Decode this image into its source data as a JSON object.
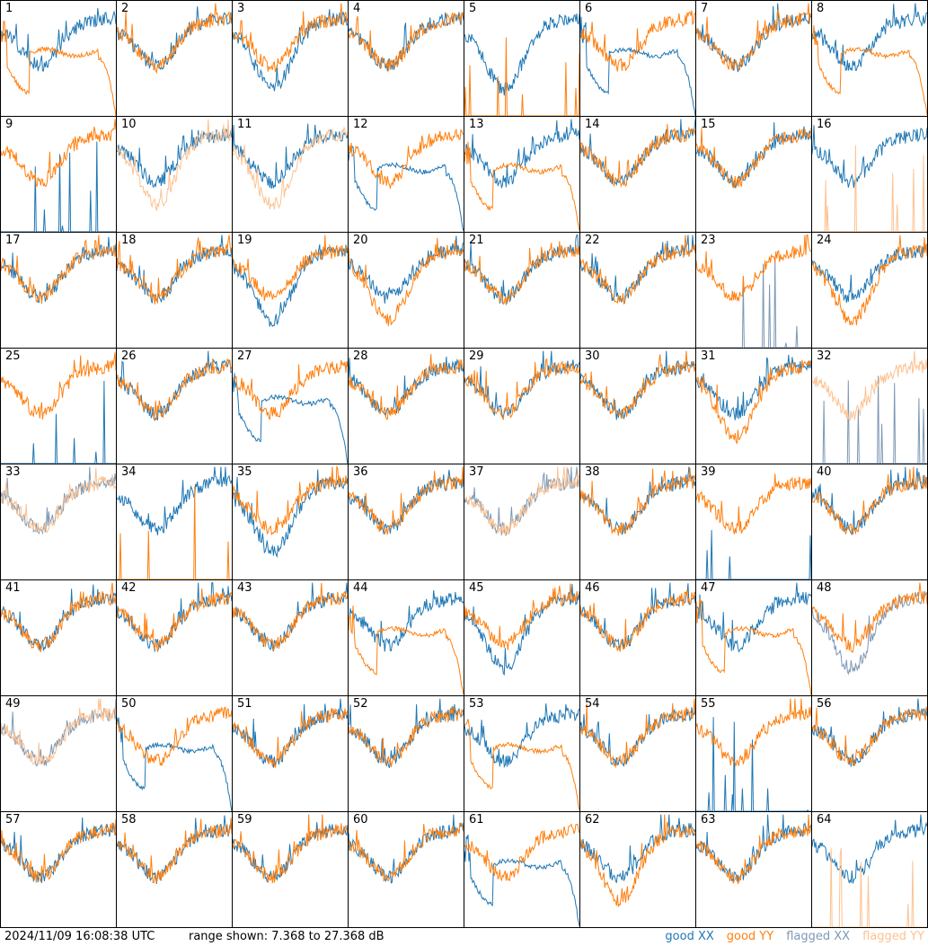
{
  "chart_data": {
    "type": "line",
    "title": "",
    "timestamp": "2024/11/09 16:08:38 UTC",
    "range_text": "range shown: 7.368 to 27.368 dB",
    "ylim": [
      7.368,
      27.368
    ],
    "units": "dB",
    "legend": [
      {
        "label": "good XX",
        "color": "#1f77b4"
      },
      {
        "label": "good YY",
        "color": "#ff7f0e"
      },
      {
        "label": "flagged XX",
        "color": "#7d98b5"
      },
      {
        "label": "flagged YY",
        "color": "#fdc291"
      }
    ],
    "panels": [
      {
        "id": "1",
        "xx": "good",
        "yy": "good",
        "xxshape": "normal",
        "yyshape": "droop"
      },
      {
        "id": "2",
        "xx": "good",
        "yy": "good",
        "xxshape": "normal",
        "yyshape": "normal"
      },
      {
        "id": "3",
        "xx": "good",
        "yy": "good",
        "xxshape": "deep",
        "yyshape": "normal"
      },
      {
        "id": "4",
        "xx": "good",
        "yy": "good",
        "xxshape": "normal",
        "yyshape": "normal"
      },
      {
        "id": "5",
        "xx": "good",
        "yy": "good",
        "xxshape": "deep",
        "yyshape": "spikes"
      },
      {
        "id": "6",
        "xx": "good",
        "yy": "good",
        "xxshape": "droop",
        "yyshape": "normal"
      },
      {
        "id": "7",
        "xx": "good",
        "yy": "good",
        "xxshape": "normal",
        "yyshape": "normal"
      },
      {
        "id": "8",
        "xx": "good",
        "yy": "good",
        "xxshape": "normal",
        "yyshape": "droop"
      },
      {
        "id": "9",
        "xx": "good",
        "yy": "good",
        "xxshape": "spikes",
        "yyshape": "normal"
      },
      {
        "id": "10",
        "xx": "good",
        "yy": "flagged",
        "xxshape": "normal",
        "yyshape": "deep"
      },
      {
        "id": "11",
        "xx": "good",
        "yy": "flagged",
        "xxshape": "normal",
        "yyshape": "deep"
      },
      {
        "id": "12",
        "xx": "good",
        "yy": "good",
        "xxshape": "droop",
        "yyshape": "normal"
      },
      {
        "id": "13",
        "xx": "good",
        "yy": "good",
        "xxshape": "normal",
        "yyshape": "droop"
      },
      {
        "id": "14",
        "xx": "good",
        "yy": "good",
        "xxshape": "normal",
        "yyshape": "normal"
      },
      {
        "id": "15",
        "xx": "good",
        "yy": "good",
        "xxshape": "normal",
        "yyshape": "normal"
      },
      {
        "id": "16",
        "xx": "good",
        "yy": "flagged",
        "xxshape": "normal",
        "yyshape": "spikes"
      },
      {
        "id": "17",
        "xx": "good",
        "yy": "good",
        "xxshape": "normal",
        "yyshape": "normal"
      },
      {
        "id": "18",
        "xx": "good",
        "yy": "good",
        "xxshape": "normal",
        "yyshape": "normal"
      },
      {
        "id": "19",
        "xx": "good",
        "yy": "good",
        "xxshape": "deep",
        "yyshape": "normal"
      },
      {
        "id": "20",
        "xx": "good",
        "yy": "good",
        "xxshape": "normal",
        "yyshape": "deep"
      },
      {
        "id": "21",
        "xx": "good",
        "yy": "good",
        "xxshape": "normal",
        "yyshape": "normal"
      },
      {
        "id": "22",
        "xx": "good",
        "yy": "good",
        "xxshape": "normal",
        "yyshape": "normal"
      },
      {
        "id": "23",
        "xx": "flagged",
        "yy": "good",
        "xxshape": "spikes",
        "yyshape": "normal"
      },
      {
        "id": "24",
        "xx": "good",
        "yy": "good",
        "xxshape": "normal",
        "yyshape": "deep"
      },
      {
        "id": "25",
        "xx": "good",
        "yy": "good",
        "xxshape": "spikes",
        "yyshape": "normal"
      },
      {
        "id": "26",
        "xx": "good",
        "yy": "good",
        "xxshape": "normal",
        "yyshape": "normal"
      },
      {
        "id": "27",
        "xx": "good",
        "yy": "good",
        "xxshape": "droop",
        "yyshape": "normal"
      },
      {
        "id": "28",
        "xx": "good",
        "yy": "good",
        "xxshape": "normal",
        "yyshape": "normal"
      },
      {
        "id": "29",
        "xx": "good",
        "yy": "good",
        "xxshape": "normal",
        "yyshape": "normal"
      },
      {
        "id": "30",
        "xx": "good",
        "yy": "good",
        "xxshape": "normal",
        "yyshape": "normal"
      },
      {
        "id": "31",
        "xx": "good",
        "yy": "good",
        "xxshape": "normal",
        "yyshape": "deep"
      },
      {
        "id": "32",
        "xx": "flagged",
        "yy": "flagged",
        "xxshape": "spikes",
        "yyshape": "normal"
      },
      {
        "id": "33",
        "xx": "flagged",
        "yy": "flagged",
        "xxshape": "normal",
        "yyshape": "normal"
      },
      {
        "id": "34",
        "xx": "good",
        "yy": "good",
        "xxshape": "normal",
        "yyshape": "spikes"
      },
      {
        "id": "35",
        "xx": "good",
        "yy": "good",
        "xxshape": "deep",
        "yyshape": "normal"
      },
      {
        "id": "36",
        "xx": "good",
        "yy": "good",
        "xxshape": "normal",
        "yyshape": "normal"
      },
      {
        "id": "37",
        "xx": "flagged",
        "yy": "flagged",
        "xxshape": "normal",
        "yyshape": "normal"
      },
      {
        "id": "38",
        "xx": "good",
        "yy": "good",
        "xxshape": "normal",
        "yyshape": "normal"
      },
      {
        "id": "39",
        "xx": "good",
        "yy": "good",
        "xxshape": "spikes",
        "yyshape": "normal"
      },
      {
        "id": "40",
        "xx": "good",
        "yy": "good",
        "xxshape": "normal",
        "yyshape": "normal"
      },
      {
        "id": "41",
        "xx": "good",
        "yy": "good",
        "xxshape": "normal",
        "yyshape": "normal"
      },
      {
        "id": "42",
        "xx": "good",
        "yy": "good",
        "xxshape": "normal",
        "yyshape": "normal"
      },
      {
        "id": "43",
        "xx": "good",
        "yy": "good",
        "xxshape": "normal",
        "yyshape": "normal"
      },
      {
        "id": "44",
        "xx": "good",
        "yy": "good",
        "xxshape": "normal",
        "yyshape": "droop"
      },
      {
        "id": "45",
        "xx": "good",
        "yy": "good",
        "xxshape": "deep",
        "yyshape": "normal"
      },
      {
        "id": "46",
        "xx": "good",
        "yy": "good",
        "xxshape": "normal",
        "yyshape": "normal"
      },
      {
        "id": "47",
        "xx": "good",
        "yy": "good",
        "xxshape": "normal",
        "yyshape": "droop"
      },
      {
        "id": "48",
        "xx": "flagged",
        "yy": "good",
        "xxshape": "deep",
        "yyshape": "normal"
      },
      {
        "id": "49",
        "xx": "flagged",
        "yy": "flagged",
        "xxshape": "normal",
        "yyshape": "normal"
      },
      {
        "id": "50",
        "xx": "good",
        "yy": "good",
        "xxshape": "droop",
        "yyshape": "normal"
      },
      {
        "id": "51",
        "xx": "good",
        "yy": "good",
        "xxshape": "normal",
        "yyshape": "normal"
      },
      {
        "id": "52",
        "xx": "good",
        "yy": "good",
        "xxshape": "normal",
        "yyshape": "normal"
      },
      {
        "id": "53",
        "xx": "good",
        "yy": "good",
        "xxshape": "normal",
        "yyshape": "droop"
      },
      {
        "id": "54",
        "xx": "good",
        "yy": "good",
        "xxshape": "normal",
        "yyshape": "normal"
      },
      {
        "id": "55",
        "xx": "good",
        "yy": "good",
        "xxshape": "spikes",
        "yyshape": "normal"
      },
      {
        "id": "56",
        "xx": "good",
        "yy": "good",
        "xxshape": "normal",
        "yyshape": "normal"
      },
      {
        "id": "57",
        "xx": "good",
        "yy": "good",
        "xxshape": "normal",
        "yyshape": "normal"
      },
      {
        "id": "58",
        "xx": "good",
        "yy": "good",
        "xxshape": "normal",
        "yyshape": "normal"
      },
      {
        "id": "59",
        "xx": "good",
        "yy": "good",
        "xxshape": "normal",
        "yyshape": "normal"
      },
      {
        "id": "60",
        "xx": "good",
        "yy": "good",
        "xxshape": "normal",
        "yyshape": "normal"
      },
      {
        "id": "61",
        "xx": "good",
        "yy": "good",
        "xxshape": "droop",
        "yyshape": "normal"
      },
      {
        "id": "62",
        "xx": "good",
        "yy": "good",
        "xxshape": "normal",
        "yyshape": "deep"
      },
      {
        "id": "63",
        "xx": "good",
        "yy": "good",
        "xxshape": "normal",
        "yyshape": "normal"
      },
      {
        "id": "64",
        "xx": "good",
        "yy": "flagged",
        "xxshape": "normal",
        "yyshape": "spikes"
      }
    ]
  }
}
